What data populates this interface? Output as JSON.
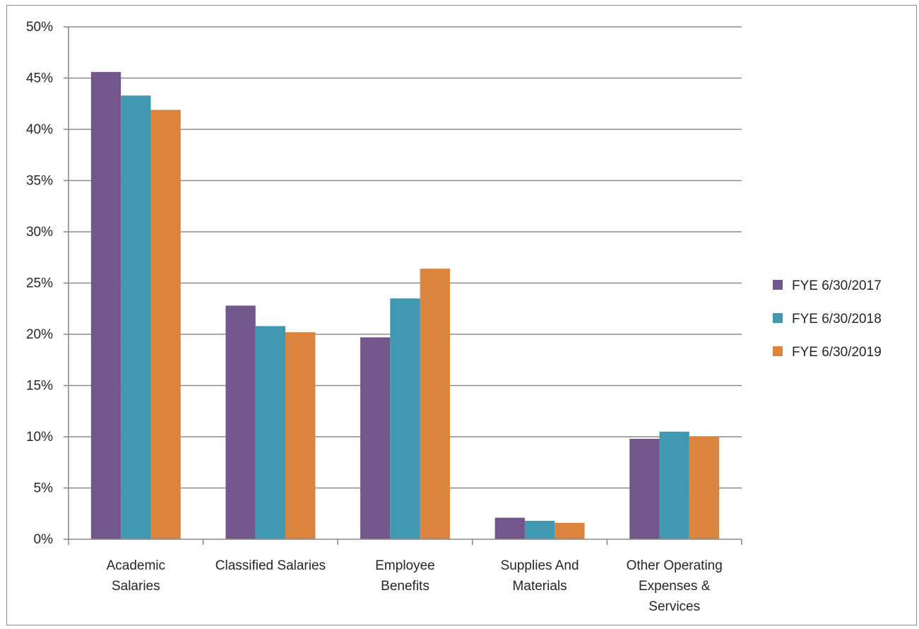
{
  "chart_data": {
    "type": "bar",
    "categories": [
      [
        "Academic",
        "Salaries"
      ],
      [
        "Classified Salaries"
      ],
      [
        "Employee",
        "Benefits"
      ],
      [
        "Supplies And",
        "Materials"
      ],
      [
        "Other Operating",
        "Expenses &",
        "Services"
      ]
    ],
    "series": [
      {
        "name": "FYE 6/30/2017",
        "color": "#72578c",
        "values": [
          45.6,
          22.8,
          19.7,
          2.1,
          9.8
        ]
      },
      {
        "name": "FYE 6/30/2018",
        "color": "#4099b0",
        "values": [
          43.3,
          20.8,
          23.5,
          1.8,
          10.5
        ]
      },
      {
        "name": "FYE 6/30/2019",
        "color": "#da843d",
        "values": [
          41.9,
          20.2,
          26.4,
          1.6,
          10.0
        ]
      }
    ],
    "ylim": [
      0,
      50
    ],
    "yticks": [
      "0%",
      "5%",
      "10%",
      "15%",
      "20%",
      "25%",
      "30%",
      "35%",
      "40%",
      "45%",
      "50%"
    ],
    "ytick_values": [
      0,
      5,
      10,
      15,
      20,
      25,
      30,
      35,
      40,
      45,
      50
    ],
    "grid": true,
    "legend_position": "right",
    "title": "",
    "xlabel": "",
    "ylabel": ""
  }
}
